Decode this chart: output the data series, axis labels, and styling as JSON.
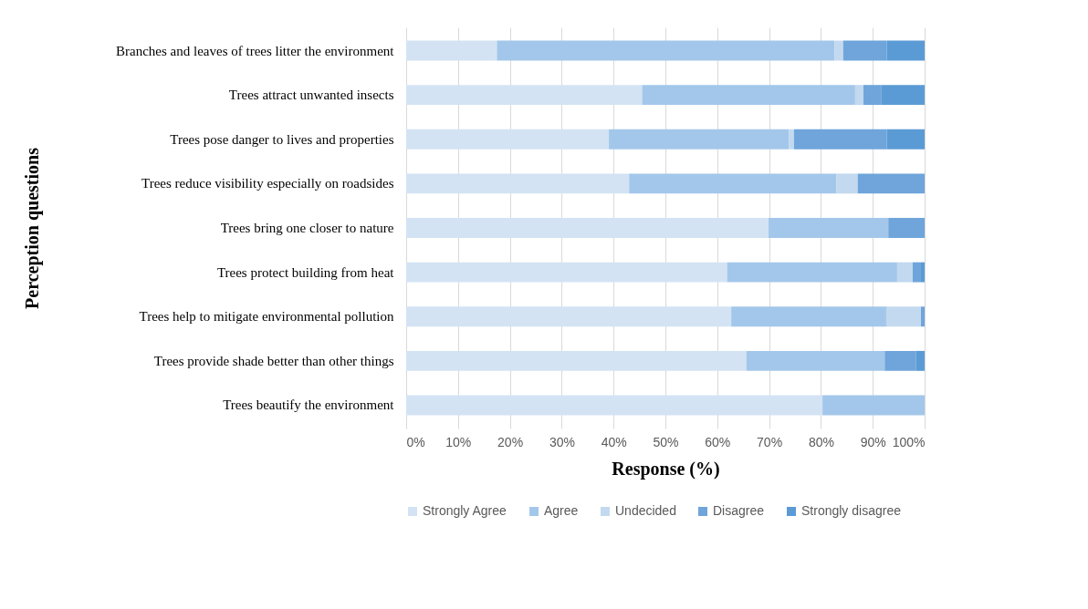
{
  "chart_data": {
    "type": "bar",
    "orientation": "horizontal",
    "stacked": true,
    "xlabel": "Response (%)",
    "ylabel": "Perception questions",
    "categories": [
      "Branches and leaves of trees litter the environment",
      "Trees attract unwanted insects",
      "Trees pose danger to lives and properties",
      "Trees reduce visibility especially on roadsides",
      "Trees bring one closer to nature",
      "Trees protect building from heat",
      "Trees help to mitigate environmental pollution",
      "Trees provide shade better than other things",
      "Trees beautify the environment"
    ],
    "series": [
      {
        "name": "Strongly Agree",
        "color": "#d3e3f4",
        "values": [
          17.5,
          45.5,
          39.1,
          43.0,
          69.9,
          61.9,
          62.7,
          65.6,
          80.3
        ]
      },
      {
        "name": "Agree",
        "color": "#a3c7ea",
        "values": [
          65.1,
          41.1,
          34.7,
          40.0,
          23.1,
          32.8,
          29.9,
          26.7,
          19.7
        ]
      },
      {
        "name": "Undecided",
        "color": "#c2d9f0",
        "values": [
          1.7,
          1.6,
          1.0,
          4.1,
          0,
          3.0,
          6.7,
          0,
          0
        ]
      },
      {
        "name": "Disagree",
        "color": "#6fa5db",
        "values": [
          8.4,
          3.4,
          17.9,
          12.9,
          7.0,
          1.6,
          0.7,
          6.0,
          0
        ]
      },
      {
        "name": "Strongly disagree",
        "color": "#5b9bd5",
        "values": [
          7.3,
          8.4,
          7.3,
          0,
          0,
          0.7,
          0,
          1.7,
          0
        ]
      }
    ],
    "xlim": [
      0,
      100
    ],
    "xticks": [
      {
        "value": 0,
        "label": "0%"
      },
      {
        "value": 10,
        "label": "10%"
      },
      {
        "value": 20,
        "label": "20%"
      },
      {
        "value": 30,
        "label": "30%"
      },
      {
        "value": 40,
        "label": "40%"
      },
      {
        "value": 50,
        "label": "50%"
      },
      {
        "value": 60,
        "label": "60%"
      },
      {
        "value": 70,
        "label": "70%"
      },
      {
        "value": 80,
        "label": "80%"
      },
      {
        "value": 90,
        "label": "90%"
      },
      {
        "value": 100,
        "label": "100%"
      }
    ],
    "grid": "x",
    "legend": "bottom"
  }
}
